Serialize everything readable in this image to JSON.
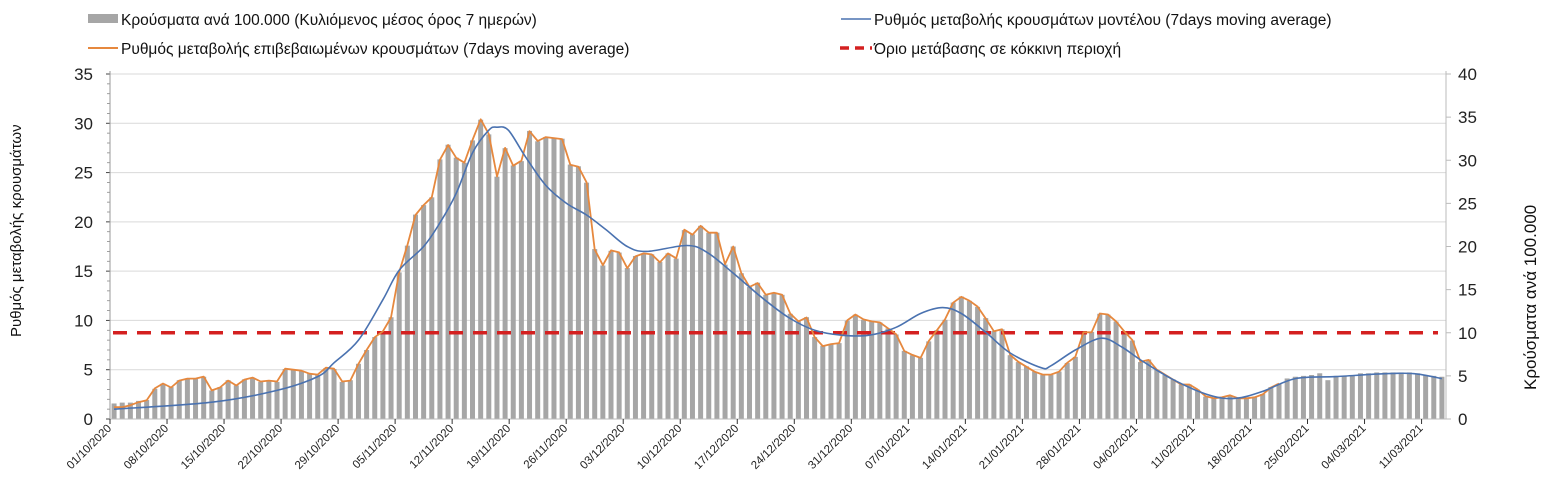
{
  "chart_data": {
    "type": "bar+line",
    "legend": {
      "placement": "top",
      "entries": [
        {
          "key": "bars",
          "label": "Κρούσματα ανά 100.000 (Κυλιόμενος μέσος όρος 7 ημερών)",
          "color": "#a6a6a6"
        },
        {
          "key": "model",
          "label": "Ρυθμός μεταβολής κρουσμάτων μοντέλου (7days moving average)",
          "color": "#4a72b0"
        },
        {
          "key": "confirmed",
          "label": "Ρυθμός μεταβολής επιβεβαιωμένων κρουσμάτων (7days moving average)",
          "color": "#e6883e"
        },
        {
          "key": "threshold",
          "label": "Όριο μετάβασης σε κόκκινη περιοχή",
          "color": "#d42020"
        }
      ]
    },
    "ylabel_left": "Ρυθμός μεταβολής κρουσμάτων",
    "ylabel_right": "Κρούσματα ανά 100.000",
    "ylim_left": [
      0,
      35
    ],
    "ylim_right": [
      0,
      40
    ],
    "yticks_left": [
      "0",
      "5",
      "10",
      "15",
      "20",
      "25",
      "30",
      "35"
    ],
    "yticks_right": [
      "0",
      "5",
      "10",
      "15",
      "20",
      "25",
      "30",
      "35",
      "40"
    ],
    "grid": true,
    "x_tick_labels": [
      "01/10/2020",
      "08/10/2020",
      "15/10/2020",
      "22/10/2020",
      "29/10/2020",
      "05/11/2020",
      "12/11/2020",
      "19/11/2020",
      "26/11/2020",
      "03/12/2020",
      "10/12/2020",
      "17/12/2020",
      "24/12/2020",
      "31/12/2020",
      "07/01/2021",
      "14/01/2021",
      "21/01/2021",
      "28/01/2021",
      "04/02/2021",
      "11/02/2021",
      "18/02/2021",
      "25/02/2021",
      "04/03/2021",
      "11/03/2021"
    ],
    "x_tick_step_days": 7,
    "threshold_right_axis": 10,
    "bars_right_axis": [
      1.8,
      1.9,
      1.9,
      2.1,
      2.2,
      3.5,
      4.1,
      3.7,
      4.5,
      4.7,
      4.7,
      4.9,
      3.3,
      3.7,
      4.5,
      3.9,
      4.6,
      4.8,
      4.3,
      4.5,
      4.3,
      5.8,
      5.7,
      5.6,
      5.3,
      5.1,
      5.9,
      5.8,
      4.3,
      4.5,
      6.4,
      8.0,
      9.5,
      10.2,
      11.8,
      17.0,
      20.1,
      23.7,
      24.8,
      25.7,
      30.1,
      31.8,
      30.3,
      29.7,
      32.3,
      34.7,
      33.0,
      28.1,
      31.4,
      29.4,
      29.9,
      33.4,
      32.2,
      32.7,
      32.6,
      32.5,
      29.5,
      29.3,
      27.4,
      19.7,
      17.8,
      19.5,
      19.3,
      17.5,
      18.9,
      19.2,
      19.1,
      18.2,
      19.2,
      18.6,
      21.9,
      21.4,
      22.4,
      21.6,
      21.6,
      17.9,
      20.0,
      16.9,
      15.3,
      15.8,
      14.4,
      14.6,
      14.4,
      12.2,
      11.3,
      11.8,
      9.5,
      8.5,
      8.7,
      8.8,
      11.4,
      12.1,
      11.5,
      11.3,
      11.2,
      10.5,
      9.8,
      7.9,
      7.4,
      7.1,
      9.0,
      10.3,
      11.5,
      13.5,
      14.2,
      13.7,
      13.0,
      11.7,
      10.2,
      10.4,
      7.4,
      6.6,
      6.1,
      5.5,
      5.1,
      5.1,
      5.5,
      6.5,
      7.2,
      10.1,
      10.1,
      12.2,
      12.1,
      11.3,
      10.2,
      9.1,
      6.6,
      6.9,
      5.7,
      5.1,
      4.6,
      4.0,
      4.0,
      3.4,
      2.6,
      2.4,
      2.5,
      2.7,
      2.4,
      2.4,
      2.5,
      2.9,
      3.7,
      4.1,
      4.7,
      4.9,
      5.0,
      5.1,
      5.3,
      4.5,
      5.0,
      5.0,
      5.1,
      5.3,
      5.3,
      5.4,
      5.4,
      5.4,
      5.4,
      5.4,
      5.3,
      5.1,
      5.0,
      4.9
    ],
    "confirmed_left_axis": [
      1.2,
      1.2,
      1.4,
      1.7,
      1.9,
      3.1,
      3.6,
      3.2,
      3.9,
      4.1,
      4.1,
      4.3,
      2.9,
      3.2,
      3.9,
      3.4,
      4.0,
      4.2,
      3.8,
      3.9,
      3.8,
      5.1,
      5.0,
      4.9,
      4.6,
      4.5,
      5.2,
      5.1,
      3.8,
      3.9,
      5.6,
      7.0,
      8.3,
      8.9,
      10.3,
      14.9,
      17.6,
      20.7,
      21.7,
      22.5,
      26.3,
      27.8,
      26.5,
      26.0,
      28.3,
      30.4,
      28.9,
      24.6,
      27.5,
      25.7,
      26.2,
      29.2,
      28.2,
      28.6,
      28.5,
      28.4,
      25.8,
      25.6,
      24.0,
      17.2,
      15.6,
      17.1,
      16.9,
      15.3,
      16.5,
      16.8,
      16.7,
      15.9,
      16.8,
      16.3,
      19.2,
      18.7,
      19.6,
      18.9,
      18.9,
      15.7,
      17.5,
      14.8,
      13.4,
      13.8,
      12.6,
      12.8,
      12.6,
      10.7,
      9.9,
      10.3,
      8.3,
      7.4,
      7.6,
      7.7,
      10.0,
      10.6,
      10.1,
      9.9,
      9.8,
      9.2,
      8.6,
      6.9,
      6.5,
      6.2,
      7.9,
      9.0,
      10.1,
      11.8,
      12.4,
      12.0,
      11.4,
      10.2,
      8.9,
      9.1,
      6.5,
      5.8,
      5.3,
      4.8,
      4.5,
      4.5,
      4.8,
      5.7,
      6.3,
      8.8,
      8.8,
      10.7,
      10.6,
      9.9,
      8.9,
      8.0,
      5.8,
      6.0,
      5.0,
      4.5,
      4.0,
      3.5,
      3.5,
      3.0,
      2.3,
      2.1,
      2.2,
      2.4,
      2.1,
      2.1,
      2.2,
      2.5,
      3.2,
      3.6
    ],
    "model_left_axis": [
      [
        0,
        1.0
      ],
      [
        12,
        1.7
      ],
      [
        20,
        2.9
      ],
      [
        25,
        4.3
      ],
      [
        27,
        5.7
      ],
      [
        30,
        8.0
      ],
      [
        33,
        12.1
      ],
      [
        35,
        15.1
      ],
      [
        38,
        17.5
      ],
      [
        40,
        19.9
      ],
      [
        42,
        22.9
      ],
      [
        44,
        27.0
      ],
      [
        46,
        29.3
      ],
      [
        47,
        29.6
      ],
      [
        48.4,
        29.3
      ],
      [
        50.5,
        26.6
      ],
      [
        53,
        23.7
      ],
      [
        55.5,
        21.9
      ],
      [
        58,
        20.7
      ],
      [
        60.4,
        19.2
      ],
      [
        63,
        17.5
      ],
      [
        65.4,
        17.0
      ],
      [
        70.3,
        17.6
      ],
      [
        72.8,
        16.9
      ],
      [
        76,
        14.8
      ],
      [
        79.4,
        12.4
      ],
      [
        82.8,
        10.3
      ],
      [
        86,
        9.0
      ],
      [
        89.3,
        8.5
      ],
      [
        92.7,
        8.5
      ],
      [
        96,
        9.3
      ],
      [
        99,
        10.7
      ],
      [
        101.7,
        11.3
      ],
      [
        104,
        10.7
      ],
      [
        107,
        8.8
      ],
      [
        110,
        6.7
      ],
      [
        113.8,
        5.2
      ],
      [
        115,
        5.4
      ],
      [
        118,
        7.0
      ],
      [
        121.2,
        8.2
      ],
      [
        123.7,
        7.3
      ],
      [
        126,
        6.0
      ],
      [
        130,
        4.0
      ],
      [
        134.5,
        2.4
      ],
      [
        137.7,
        2.1
      ],
      [
        141,
        2.8
      ],
      [
        145,
        4.1
      ],
      [
        150,
        4.3
      ],
      [
        156,
        4.6
      ],
      [
        159.6,
        4.6
      ],
      [
        163,
        4.1
      ]
    ]
  }
}
